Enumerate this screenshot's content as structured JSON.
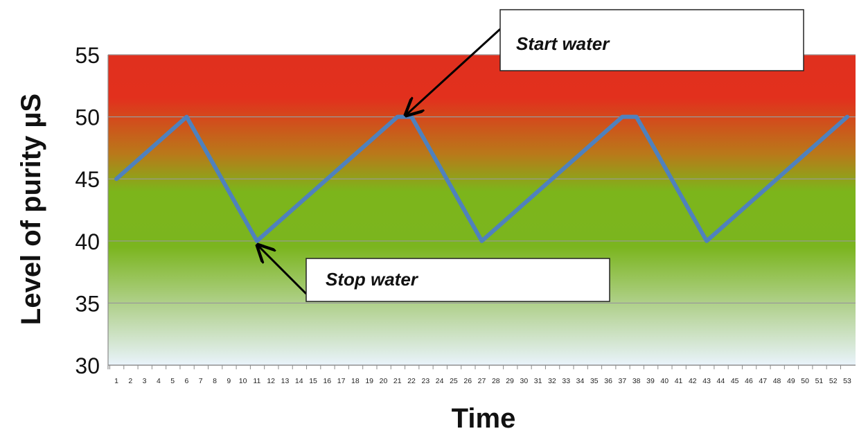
{
  "chart_data": {
    "type": "line",
    "title": "",
    "xlabel": "Time",
    "ylabel": "Level of purity  µS",
    "ylim": [
      30,
      55
    ],
    "yticks": [
      30,
      35,
      40,
      45,
      50,
      55
    ],
    "x": [
      1,
      2,
      3,
      4,
      5,
      6,
      7,
      8,
      9,
      10,
      11,
      12,
      13,
      14,
      15,
      16,
      17,
      18,
      19,
      20,
      21,
      22,
      23,
      24,
      25,
      26,
      27,
      28,
      29,
      30,
      31,
      32,
      33,
      34,
      35,
      36,
      37,
      38,
      39,
      40,
      41,
      42,
      43,
      44,
      45,
      46,
      47,
      48,
      49,
      50,
      51,
      52,
      53
    ],
    "series": [
      {
        "values": [
          45,
          46,
          47,
          48,
          49,
          50,
          48,
          46,
          44,
          42,
          40,
          41,
          42,
          43,
          44,
          45,
          46,
          47,
          48,
          49,
          50,
          50,
          48,
          46,
          44,
          42,
          40,
          41,
          42,
          43,
          44,
          45,
          46,
          47,
          48,
          49,
          50,
          50,
          48,
          46,
          44,
          42,
          40,
          41,
          42,
          43,
          44,
          45,
          46,
          47,
          48,
          49,
          50
        ],
        "color": "#4f81bd"
      }
    ],
    "background_bands": {
      "colors_top_to_bottom": [
        "#e0301e",
        "#7ab51d",
        "#eaf4fb"
      ],
      "meaning": "red high / green mid / pale low"
    },
    "grid": true,
    "annotations": [
      {
        "text": "Start water",
        "x": 22,
        "y": 50
      },
      {
        "text": "Stop water",
        "x": 11,
        "y": 40
      }
    ]
  }
}
